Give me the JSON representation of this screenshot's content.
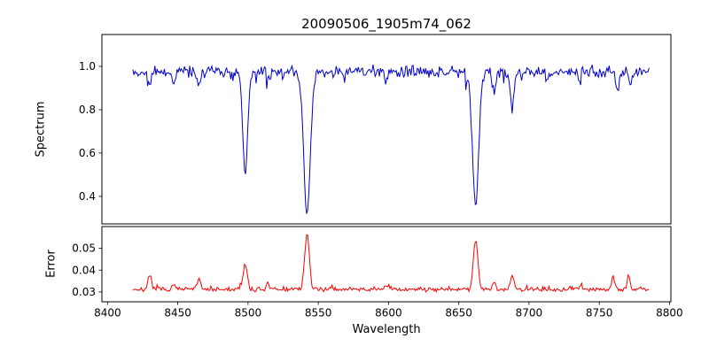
{
  "figure": {
    "title": "20090506_1905m74_062",
    "xlabel": "Wavelength",
    "background": "#ffffff",
    "xlim": [
      8396,
      8801
    ],
    "x_ticks": [
      8400,
      8450,
      8500,
      8550,
      8600,
      8650,
      8700,
      8750,
      8800
    ],
    "x_tick_labels": [
      "8400",
      "8450",
      "8500",
      "8550",
      "8600",
      "8650",
      "8700",
      "8750",
      "8800"
    ]
  },
  "chart_data": [
    {
      "name": "spectrum",
      "type": "line",
      "ylabel": "Spectrum",
      "color": "#0000cd",
      "legend": "none",
      "grid": false,
      "ylim": [
        0.273,
        1.147
      ],
      "yticks": [
        0.4,
        0.6,
        0.8,
        1.0
      ],
      "ytick_labels": [
        "0.4",
        "0.6",
        "0.8",
        "1.0"
      ],
      "x_start": 8418,
      "x_end": 8786,
      "x_step": 0.75,
      "continuum": 0.975,
      "noise_sigma": 0.013,
      "spike_prob": 0.05,
      "spike_max": 0.07,
      "seed": 42,
      "absorption_lines": [
        {
          "center": 8430,
          "depth": 0.07,
          "sigma": 1.2
        },
        {
          "center": 8447,
          "depth": 0.05,
          "sigma": 1.0
        },
        {
          "center": 8465,
          "depth": 0.06,
          "sigma": 1.2
        },
        {
          "center": 8498,
          "depth": 0.47,
          "sigma": 1.7
        },
        {
          "center": 8514,
          "depth": 0.05,
          "sigma": 1.0
        },
        {
          "center": 8542,
          "depth": 0.64,
          "sigma": 2.4
        },
        {
          "center": 8598,
          "depth": 0.05,
          "sigma": 1.0
        },
        {
          "center": 8662,
          "depth": 0.62,
          "sigma": 2.2
        },
        {
          "center": 8675,
          "depth": 0.1,
          "sigma": 1.1
        },
        {
          "center": 8688,
          "depth": 0.16,
          "sigma": 1.3
        },
        {
          "center": 8713,
          "depth": 0.04,
          "sigma": 1.0
        },
        {
          "center": 8736,
          "depth": 0.04,
          "sigma": 1.0
        },
        {
          "center": 8763,
          "depth": 0.08,
          "sigma": 1.1
        },
        {
          "center": 8772,
          "depth": 0.06,
          "sigma": 1.0
        }
      ]
    },
    {
      "name": "error",
      "type": "line",
      "ylabel": "Error",
      "color": "#ff0000",
      "legend": "none",
      "grid": false,
      "ylim": [
        0.0255,
        0.06
      ],
      "yticks": [
        0.03,
        0.04,
        0.05
      ],
      "ytick_labels": [
        "0.03",
        "0.04",
        "0.05"
      ],
      "x_start": 8418,
      "x_end": 8786,
      "x_step": 0.75,
      "baseline": 0.0312,
      "noise_sigma": 0.0005,
      "spike_prob": 0.05,
      "spike_max": 0.002,
      "seed": 7,
      "peaks": [
        {
          "center": 8430,
          "height": 0.006,
          "sigma": 1.2
        },
        {
          "center": 8447,
          "height": 0.0025,
          "sigma": 1.0
        },
        {
          "center": 8465,
          "height": 0.005,
          "sigma": 1.2
        },
        {
          "center": 8498,
          "height": 0.011,
          "sigma": 1.5
        },
        {
          "center": 8514,
          "height": 0.0025,
          "sigma": 1.0
        },
        {
          "center": 8542,
          "height": 0.026,
          "sigma": 1.6
        },
        {
          "center": 8598,
          "height": 0.002,
          "sigma": 1.0
        },
        {
          "center": 8662,
          "height": 0.023,
          "sigma": 1.6
        },
        {
          "center": 8675,
          "height": 0.0035,
          "sigma": 1.1
        },
        {
          "center": 8688,
          "height": 0.006,
          "sigma": 1.3
        },
        {
          "center": 8736,
          "height": 0.002,
          "sigma": 1.0
        },
        {
          "center": 8760,
          "height": 0.006,
          "sigma": 1.1
        },
        {
          "center": 8771,
          "height": 0.0065,
          "sigma": 1.0
        }
      ]
    }
  ]
}
